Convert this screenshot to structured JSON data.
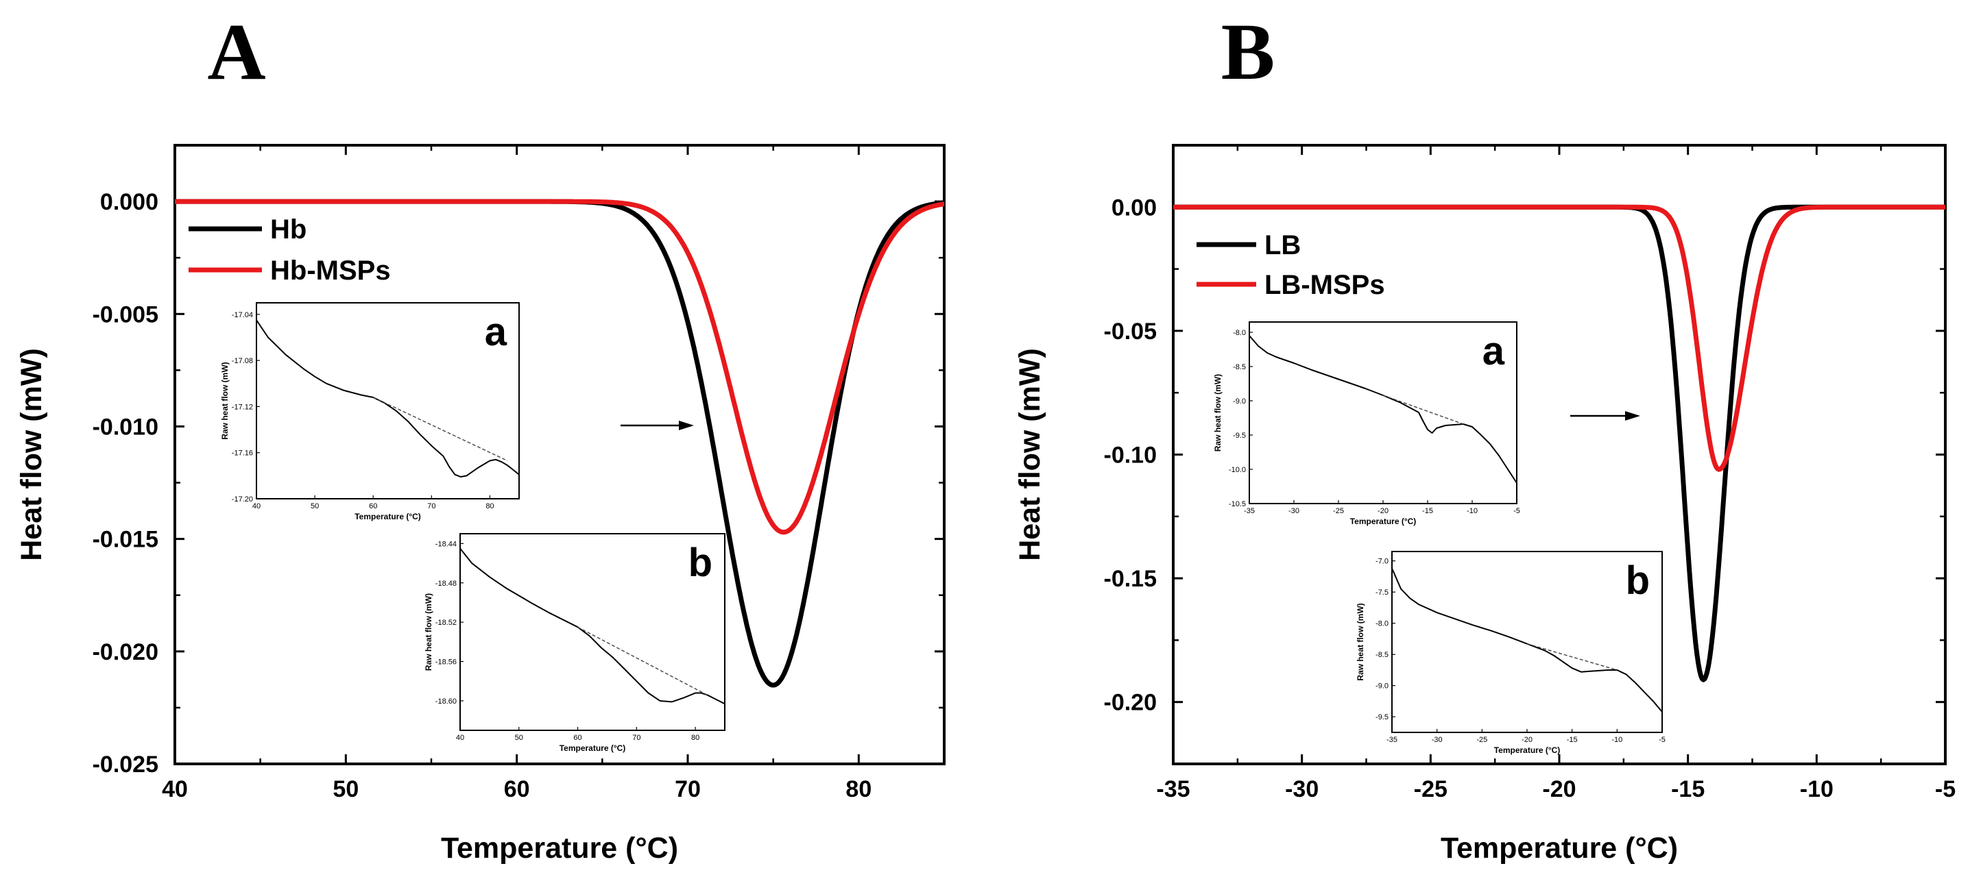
{
  "chart_data": [
    {
      "panel": "A",
      "type": "line",
      "xlabel": "Temperature (°C)",
      "ylabel": "Heat flow (mW)",
      "xlim": [
        40,
        85
      ],
      "ylim": [
        -0.025,
        0.0025
      ],
      "x_ticks": [
        40,
        50,
        60,
        70,
        80
      ],
      "x_tick_labels": [
        "40",
        "50",
        "60",
        "70",
        "80"
      ],
      "y_ticks": [
        0,
        -0.005,
        -0.01,
        -0.015,
        -0.02,
        -0.025
      ],
      "y_tick_labels": [
        "0.000",
        "-0.005",
        "-0.010",
        "-0.015",
        "-0.020",
        "-0.025"
      ],
      "legend_position": "top-left",
      "series": [
        {
          "name": "Hb",
          "color": "#000000",
          "peak_x": 75.0,
          "peak_y": -0.0215,
          "sigma_left": 3.0,
          "sigma_right": 2.9
        },
        {
          "name": "Hb-MSPs",
          "color": "#e8191c",
          "peak_x": 75.6,
          "peak_y": -0.0147,
          "sigma_left": 2.9,
          "sigma_right": 3.0
        }
      ],
      "arrow": "right",
      "insets": [
        {
          "letter": "a",
          "xlabel": "Temperature (°C)",
          "ylabel": "Raw heat flow (mW)",
          "xlim": [
            40,
            85
          ],
          "ylim": [
            -17.2,
            -17.03
          ],
          "x_ticks": [
            40,
            50,
            60,
            70,
            80
          ],
          "x_tick_labels": [
            "40",
            "50",
            "60",
            "70",
            "80"
          ],
          "y_ticks": [
            -17.04,
            -17.08,
            -17.12,
            -17.16,
            -17.2
          ],
          "y_tick_labels": [
            "-17.04",
            "-17.08",
            "-17.12",
            "-17.16",
            "-17.20"
          ],
          "curve": {
            "x": [
              40,
              42,
              45,
              48,
              50,
              52,
              55,
              58,
              60,
              62,
              64,
              66,
              68,
              70,
              72,
              73,
              74,
              75,
              76,
              78,
              80,
              81,
              82,
              83,
              84,
              85
            ],
            "y": [
              -17.045,
              -17.06,
              -17.075,
              -17.087,
              -17.094,
              -17.1,
              -17.106,
              -17.11,
              -17.112,
              -17.117,
              -17.124,
              -17.133,
              -17.144,
              -17.154,
              -17.163,
              -17.172,
              -17.179,
              -17.181,
              -17.18,
              -17.173,
              -17.167,
              -17.166,
              -17.168,
              -17.171,
              -17.175,
              -17.179
            ]
          },
          "baseline": {
            "x": [
              60,
              83
            ],
            "y": [
              -17.112,
              -17.167
            ]
          }
        },
        {
          "letter": "b",
          "xlabel": "Temperature (°C)",
          "ylabel": "Raw heat flow (mW)",
          "xlim": [
            40,
            85
          ],
          "ylim": [
            -18.63,
            -18.43
          ],
          "x_ticks": [
            40,
            50,
            60,
            70,
            80
          ],
          "x_tick_labels": [
            "40",
            "50",
            "60",
            "70",
            "80"
          ],
          "y_ticks": [
            -18.44,
            -18.48,
            -18.52,
            -18.56,
            -18.6
          ],
          "y_tick_labels": [
            "-18.44",
            "-18.48",
            "-18.52",
            "-18.56",
            "-18.60"
          ],
          "curve": {
            "x": [
              40,
              42,
              45,
              48,
              50,
              52,
              55,
              58,
              60,
              62,
              64,
              66,
              68,
              70,
              72,
              74,
              76,
              78,
              80,
              81,
              82,
              83,
              84,
              85
            ],
            "y": [
              -18.445,
              -18.46,
              -18.474,
              -18.486,
              -18.493,
              -18.5,
              -18.51,
              -18.519,
              -18.525,
              -18.534,
              -18.546,
              -18.556,
              -18.568,
              -18.58,
              -18.592,
              -18.6,
              -18.601,
              -18.597,
              -18.592,
              -18.592,
              -18.594,
              -18.597,
              -18.6,
              -18.603
            ]
          },
          "baseline": {
            "x": [
              60,
              82
            ],
            "y": [
              -18.525,
              -18.594
            ]
          }
        }
      ]
    },
    {
      "panel": "B",
      "type": "line",
      "xlabel": "Temperature (°C)",
      "ylabel": "Heat flow (mW)",
      "xlim": [
        -35,
        -5
      ],
      "ylim": [
        -0.225,
        0.025
      ],
      "x_ticks": [
        -35,
        -30,
        -25,
        -20,
        -15,
        -10,
        -5
      ],
      "x_tick_labels": [
        "-35",
        "-30",
        "-25",
        "-20",
        "-15",
        "-10",
        "-5"
      ],
      "y_ticks": [
        0,
        -0.05,
        -0.1,
        -0.15,
        -0.2
      ],
      "y_tick_labels": [
        "0.00",
        "-0.05",
        "-0.10",
        "-0.15",
        "-0.20"
      ],
      "legend_position": "top-left",
      "series": [
        {
          "name": "LB",
          "color": "#000000",
          "peak_x": -14.4,
          "peak_y": -0.191,
          "sigma_left": 0.75,
          "sigma_right": 0.8
        },
        {
          "name": "LB-MSPs",
          "color": "#e8191c",
          "peak_x": -13.8,
          "peak_y": -0.106,
          "sigma_left": 0.75,
          "sigma_right": 1.0
        }
      ],
      "arrow": "right",
      "insets": [
        {
          "letter": "a",
          "xlabel": "Temperature (°C)",
          "ylabel": "Raw heat flow (mW)",
          "xlim": [
            -35,
            -5
          ],
          "ylim": [
            -10.5,
            -7.85
          ],
          "x_ticks": [
            -35,
            -30,
            -25,
            -20,
            -15,
            -10,
            -5
          ],
          "x_tick_labels": [
            "-35",
            "-30",
            "-25",
            "-20",
            "-15",
            "-10",
            "-5"
          ],
          "y_ticks": [
            -8.0,
            -8.5,
            -9.0,
            -9.5,
            -10.0,
            -10.5
          ],
          "y_tick_labels": [
            "-8.0",
            "-8.5",
            "-9.0",
            "-9.5",
            "-10.0",
            "-10.5"
          ],
          "curve": {
            "x": [
              -35,
              -34,
              -33,
              -32,
              -30,
              -28,
              -26,
              -24,
              -22,
              -20,
              -18,
              -17,
              -16,
              -15.5,
              -15,
              -14.5,
              -14,
              -13,
              -12,
              -11,
              -10,
              -9,
              -8,
              -7,
              -6,
              -5
            ],
            "y": [
              -8.05,
              -8.2,
              -8.3,
              -8.36,
              -8.45,
              -8.55,
              -8.64,
              -8.73,
              -8.82,
              -8.92,
              -9.03,
              -9.1,
              -9.17,
              -9.3,
              -9.42,
              -9.47,
              -9.4,
              -9.36,
              -9.35,
              -9.34,
              -9.38,
              -9.5,
              -9.63,
              -9.8,
              -10.0,
              -10.2
            ]
          },
          "baseline": {
            "x": [
              -20,
              -11
            ],
            "y": [
              -8.92,
              -9.34
            ]
          }
        },
        {
          "letter": "b",
          "xlabel": "Temperature (°C)",
          "ylabel": "Raw heat flow (mW)",
          "xlim": [
            -35,
            -5
          ],
          "ylim": [
            -9.75,
            -6.85
          ],
          "x_ticks": [
            -35,
            -30,
            -25,
            -20,
            -15,
            -10,
            -5
          ],
          "x_tick_labels": [
            "-35",
            "-30",
            "-25",
            "-20",
            "-15",
            "-10",
            "-5"
          ],
          "y_ticks": [
            -7.0,
            -7.5,
            -8.0,
            -8.5,
            -9.0,
            -9.5
          ],
          "y_tick_labels": [
            "-7.0",
            "-7.5",
            "-8.0",
            "-8.5",
            "-9.0",
            "-9.5"
          ],
          "curve": {
            "x": [
              -35,
              -34,
              -33,
              -32,
              -30,
              -28,
              -26,
              -24,
              -22,
              -20,
              -18,
              -17,
              -16,
              -15,
              -14,
              -13,
              -12,
              -11,
              -10,
              -9,
              -8,
              -7,
              -6,
              -5
            ],
            "y": [
              -7.12,
              -7.45,
              -7.6,
              -7.7,
              -7.83,
              -7.93,
              -8.03,
              -8.12,
              -8.22,
              -8.33,
              -8.44,
              -8.52,
              -8.62,
              -8.72,
              -8.78,
              -8.77,
              -8.76,
              -8.75,
              -8.75,
              -8.82,
              -8.95,
              -9.1,
              -9.25,
              -9.42
            ]
          },
          "baseline": {
            "x": [
              -20,
              -10
            ],
            "y": [
              -8.33,
              -8.75
            ]
          }
        }
      ]
    }
  ]
}
